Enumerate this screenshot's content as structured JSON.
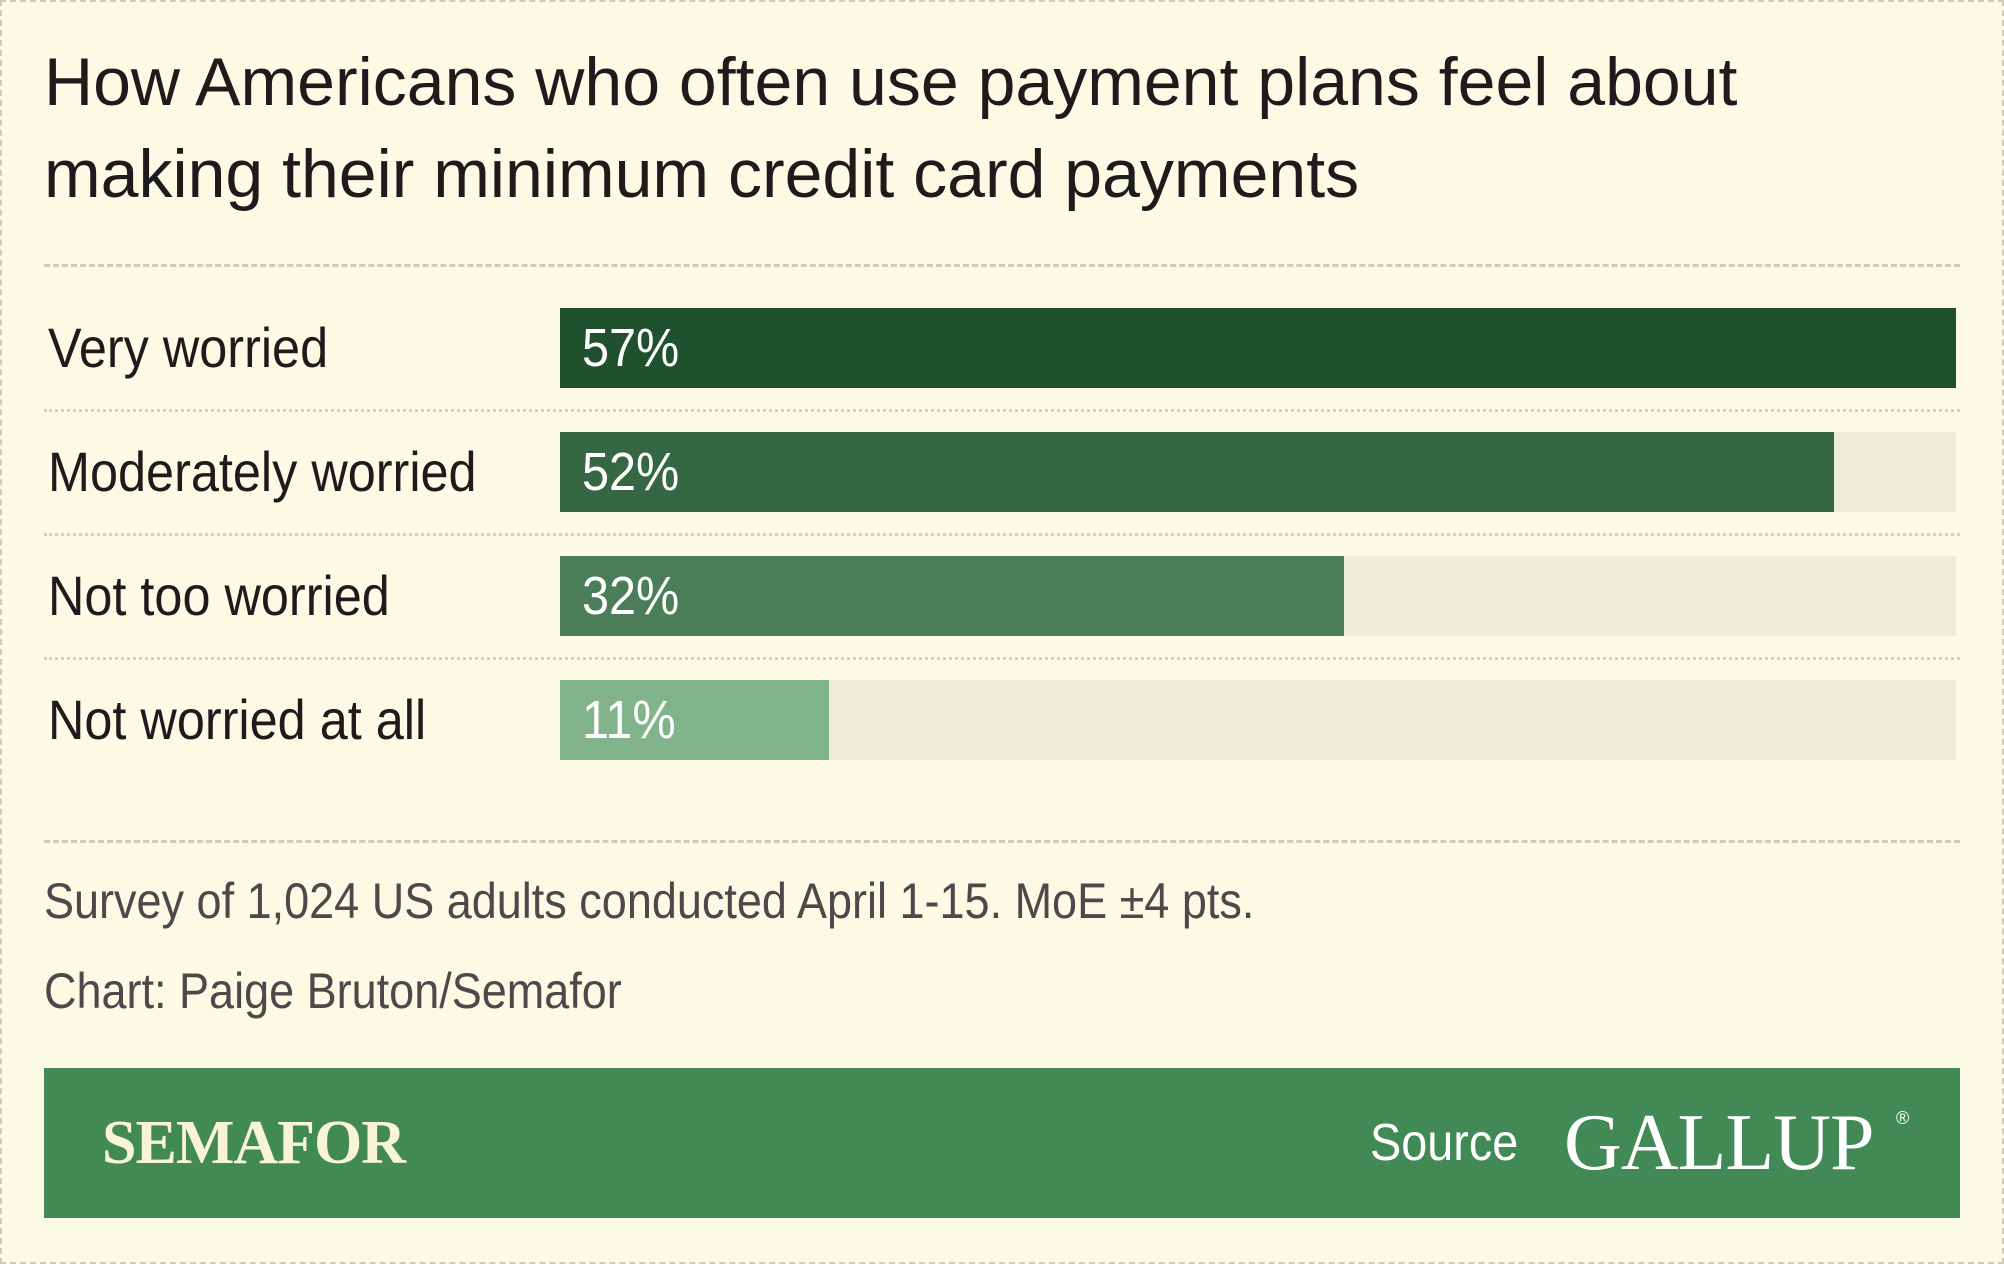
{
  "chart_data": {
    "type": "bar",
    "orientation": "horizontal",
    "title": "How Americans who often use payment plans feel about making their minimum credit card payments",
    "categories": [
      "Very worried",
      "Moderately worried",
      "Not too worried",
      "Not worried at all"
    ],
    "values": [
      57,
      52,
      32,
      11
    ],
    "value_labels": [
      "57%",
      "52%",
      "32%",
      "11%"
    ],
    "xlim": [
      0,
      57
    ],
    "colors": [
      "#20512e",
      "#356842",
      "#4b7d58",
      "#82b48c"
    ],
    "track_color": "#efecd9",
    "grid": false,
    "legend": "none"
  },
  "notes": {
    "survey": "Survey of 1,024 US adults conducted April 1-15. MoE ±4 pts.",
    "credit": "Chart: Paige Bruton/Semafor"
  },
  "footer": {
    "brand": "SEMAFOR",
    "source_label": "Source",
    "source_name": "GALLUP",
    "background": "#418a55"
  },
  "page_background": "#fcf9e4"
}
